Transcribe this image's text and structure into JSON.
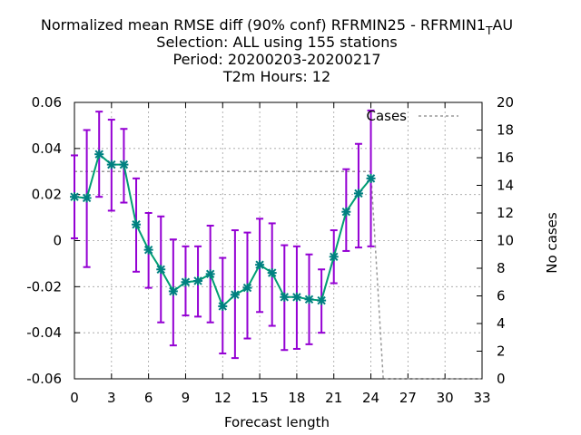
{
  "chart_data": {
    "type": "line",
    "title_lines": [
      "Normalized mean RMSE diff (90% conf) RFRMIN25 - RFRMIN1",
      "Selection: ALL using   155 stations",
      "Period: 20200203-20200217",
      "T2m   Hours:  12"
    ],
    "title_subscript": "T",
    "title_suffix": "AU",
    "xlabel": "Forecast length",
    "ylabel_left": "",
    "ylabel_right": "No cases",
    "xlim": [
      0,
      33
    ],
    "ylim": [
      -0.06,
      0.06
    ],
    "y2lim": [
      0,
      20
    ],
    "xticks": [
      0,
      3,
      6,
      9,
      12,
      15,
      18,
      21,
      24,
      27,
      30,
      33
    ],
    "yticks": [
      -0.06,
      -0.04,
      -0.02,
      0,
      0.02,
      0.04,
      0.06
    ],
    "yticklabels": [
      "-0.06",
      "-0.04",
      "-0.02",
      "0",
      "0.02",
      "0.04",
      "0.06"
    ],
    "y2ticks": [
      0,
      2,
      4,
      6,
      8,
      10,
      12,
      14,
      16,
      18,
      20
    ],
    "grid": true,
    "legend_position": "top-right",
    "legend_label": "Cases",
    "colors": {
      "main": "#009e73",
      "errorbar": "#9400d3",
      "cases": "#999999",
      "marker": "#008080"
    },
    "series": [
      {
        "x": [
          0,
          1,
          2,
          3,
          4,
          5,
          6,
          7,
          8,
          9,
          10,
          11,
          12,
          13,
          14,
          15,
          16,
          17,
          18,
          19,
          20,
          21,
          22,
          23,
          24
        ],
        "values": [
          0.019,
          0.0185,
          0.0375,
          0.033,
          0.033,
          0.007,
          -0.004,
          -0.0125,
          -0.022,
          -0.018,
          -0.0175,
          -0.0145,
          -0.0285,
          -0.0235,
          -0.0205,
          -0.0105,
          -0.014,
          -0.0245,
          -0.0245,
          -0.0255,
          -0.026,
          -0.007,
          0.0125,
          0.0205,
          0.027
        ],
        "err_low": [
          0.001,
          -0.0115,
          0.019,
          0.013,
          0.0165,
          -0.0135,
          -0.0205,
          -0.0355,
          -0.0455,
          -0.0325,
          -0.033,
          -0.0355,
          -0.049,
          -0.051,
          -0.0425,
          -0.031,
          -0.037,
          -0.0475,
          -0.047,
          -0.045,
          -0.04,
          -0.0185,
          -0.0045,
          -0.003,
          -0.0025
        ],
        "err_high": [
          0.037,
          0.048,
          0.056,
          0.0525,
          0.0485,
          0.027,
          0.012,
          0.0105,
          0.0005,
          -0.0025,
          -0.0025,
          0.0065,
          -0.0075,
          0.0045,
          0.0035,
          0.0095,
          0.0075,
          -0.002,
          -0.0025,
          -0.006,
          -0.0125,
          0.0045,
          0.031,
          0.042,
          0.0565
        ]
      },
      {
        "x": [
          0,
          24,
          25,
          33
        ],
        "values": [
          15,
          15,
          0,
          0
        ],
        "axis": "right"
      }
    ]
  }
}
